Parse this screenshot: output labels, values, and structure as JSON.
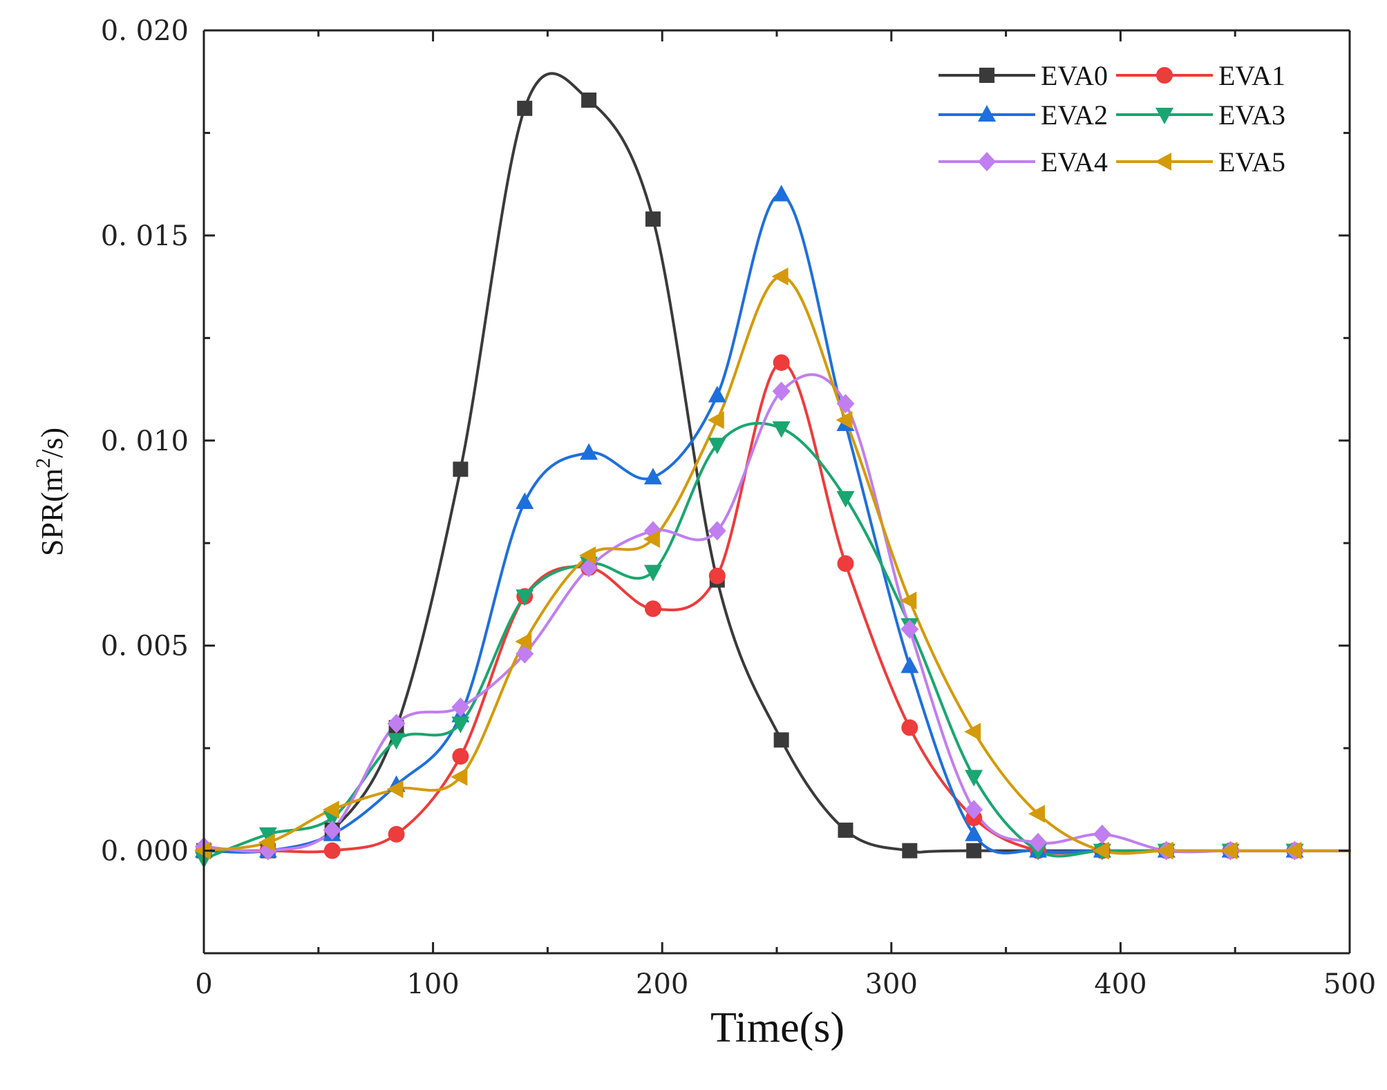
{
  "chart_data": {
    "type": "line",
    "title": "",
    "xlabel": "Time(s)",
    "ylabel": "SPR(m²/s)",
    "ylabel_base": "SPR(m",
    "ylabel_sup": "2",
    "ylabel_tail": "/s)",
    "xlim": [
      0,
      500
    ],
    "ylim": [
      -0.0025,
      0.02
    ],
    "xticks": [
      0,
      100,
      200,
      300,
      400,
      500
    ],
    "xtick_labels": [
      "0",
      "100",
      "200",
      "300",
      "400",
      "500"
    ],
    "yticks": [
      0.0,
      0.005,
      0.01,
      0.015,
      0.02
    ],
    "ytick_labels": [
      "0. 000",
      "0. 005",
      "0. 010",
      "0. 015",
      "0. 020"
    ],
    "grid": false,
    "legend_position": "top-right",
    "series": [
      {
        "name": "EVA0",
        "color": "#3a3a3a",
        "marker": "square",
        "x": [
          0,
          28,
          56,
          84,
          112,
          140,
          168,
          196,
          224,
          252,
          280,
          308,
          336
        ],
        "y": [
          0.0,
          0.0,
          0.0005,
          0.003,
          0.0093,
          0.0181,
          0.0183,
          0.0154,
          0.0066,
          0.0027,
          0.0005,
          0.0,
          0.0
        ],
        "tail": [
          [
            500,
            0.0
          ]
        ]
      },
      {
        "name": "EVA1",
        "color": "#ee3b3b",
        "marker": "circle",
        "x": [
          0,
          28,
          56,
          84,
          112,
          140,
          168,
          196,
          224,
          252,
          280,
          308,
          336,
          364,
          392,
          420,
          448,
          476
        ],
        "y": [
          0.0,
          0.0,
          0.0,
          0.0004,
          0.0023,
          0.0062,
          0.0069,
          0.0059,
          0.0067,
          0.0119,
          0.007,
          0.003,
          0.0008,
          0.0,
          0.0,
          0.0,
          0.0,
          0.0
        ],
        "tail": [
          [
            500,
            0.0
          ]
        ]
      },
      {
        "name": "EVA2",
        "color": "#1e6fdc",
        "marker": "triangle-up",
        "x": [
          0,
          28,
          56,
          84,
          112,
          140,
          168,
          196,
          224,
          252,
          280,
          308,
          336,
          364,
          392,
          420,
          448,
          476
        ],
        "y": [
          0.0,
          0.0,
          0.0004,
          0.0016,
          0.0033,
          0.0085,
          0.0097,
          0.0091,
          0.0111,
          0.016,
          0.0104,
          0.0045,
          0.0004,
          0.0,
          0.0,
          0.0,
          0.0,
          0.0
        ],
        "tail": [
          [
            500,
            0.0
          ]
        ]
      },
      {
        "name": "EVA3",
        "color": "#1aa670",
        "marker": "triangle-down",
        "x": [
          0,
          28,
          56,
          84,
          112,
          140,
          168,
          196,
          224,
          252,
          280,
          308,
          336,
          364,
          392,
          420,
          448,
          476
        ],
        "y": [
          -0.0002,
          0.0004,
          0.0008,
          0.0027,
          0.0031,
          0.0062,
          0.007,
          0.0068,
          0.0099,
          0.0103,
          0.0086,
          0.0055,
          0.0018,
          0.0,
          0.0,
          0.0,
          0.0,
          0.0
        ],
        "tail": [
          [
            500,
            0.0
          ]
        ]
      },
      {
        "name": "EVA4",
        "color": "#c07ef0",
        "marker": "diamond",
        "x": [
          0,
          28,
          56,
          84,
          112,
          140,
          168,
          196,
          224,
          252,
          280,
          308,
          336,
          364,
          392,
          420,
          448,
          476
        ],
        "y": [
          0.0001,
          0.0,
          0.0005,
          0.0031,
          0.0035,
          0.0048,
          0.0069,
          0.0078,
          0.0078,
          0.0112,
          0.0109,
          0.0054,
          0.001,
          0.0002,
          0.0004,
          0.0,
          0.0,
          0.0
        ],
        "tail": [
          [
            500,
            0.0
          ]
        ]
      },
      {
        "name": "EVA5",
        "color": "#d49a0a",
        "marker": "triangle-left",
        "x": [
          0,
          28,
          56,
          84,
          112,
          140,
          168,
          196,
          224,
          252,
          280,
          308,
          336,
          364,
          392,
          420,
          448,
          476
        ],
        "y": [
          0.0,
          0.0002,
          0.001,
          0.0015,
          0.0018,
          0.0051,
          0.0072,
          0.0076,
          0.0105,
          0.014,
          0.0105,
          0.0061,
          0.0029,
          0.0009,
          0.0,
          0.0,
          0.0,
          0.0
        ],
        "tail": [
          [
            500,
            0.0
          ]
        ]
      }
    ]
  }
}
